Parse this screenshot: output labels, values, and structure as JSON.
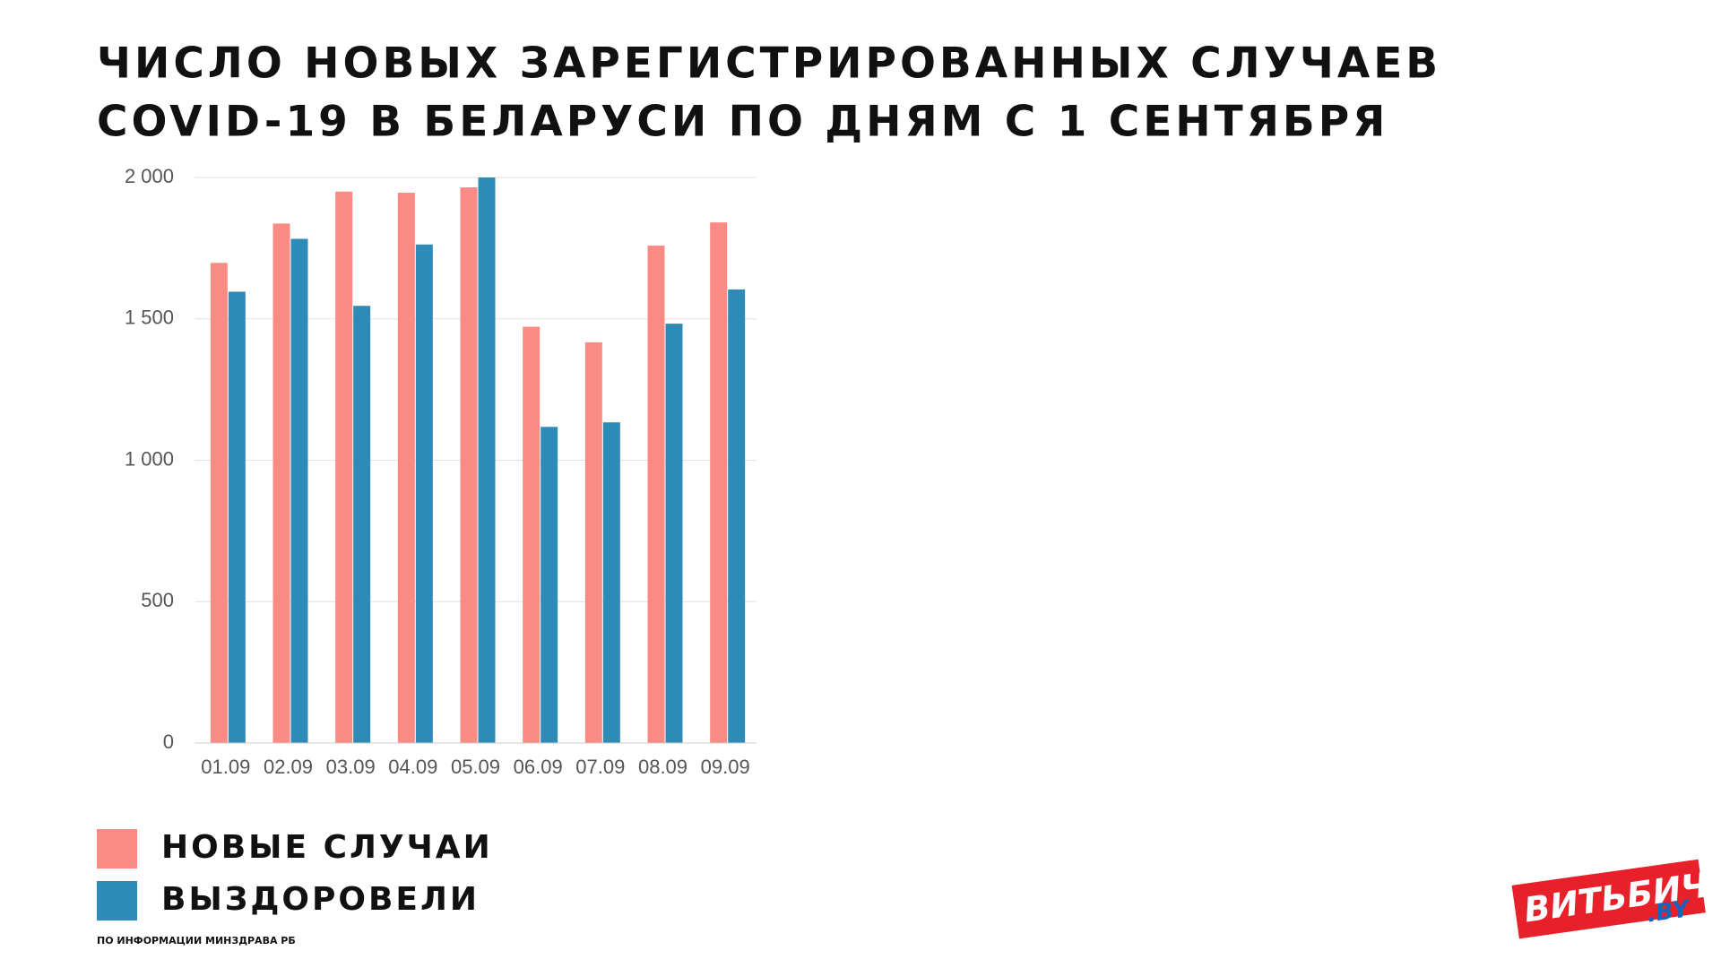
{
  "chart_data": {
    "type": "bar",
    "title": [
      "ЧИСЛО НОВЫХ ЗАРЕГИСТРИРОВАННЫХ СЛУЧАЕВ",
      "COVID-19 В БЕЛАРУСИ ПО ДНЯМ С 1 СЕНТЯБРЯ"
    ],
    "categories": [
      "01.09",
      "02.09",
      "03.09",
      "04.09",
      "05.09",
      "06.09",
      "07.09",
      "08.09",
      "09.09"
    ],
    "series": [
      {
        "name": "НОВЫЕ СЛУЧАИ",
        "color": "#fa8a84",
        "values": [
          1698,
          1837,
          1950,
          1946,
          1965,
          1472,
          1417,
          1759,
          1841
        ]
      },
      {
        "name": "ВЫЗДОРОВЕЛИ",
        "color": "#2e8bb8",
        "values": [
          1596,
          1783,
          1546,
          1763,
          2000,
          1118,
          1134,
          1483,
          1604
        ]
      }
    ],
    "ylim": [
      0,
      2000
    ],
    "yticks": [
      0,
      500,
      {
        "value": 1000,
        "label": "1 000"
      },
      {
        "value": 1500,
        "label": "1 500"
      },
      {
        "value": 2000,
        "label": "2 000"
      }
    ],
    "grid": true,
    "source": "ПО ИНФОРМАЦИИ МИНЗДРАВА РБ"
  },
  "logo": {
    "name": "ВИТЬБИЧИ",
    "domain": ".BY"
  }
}
